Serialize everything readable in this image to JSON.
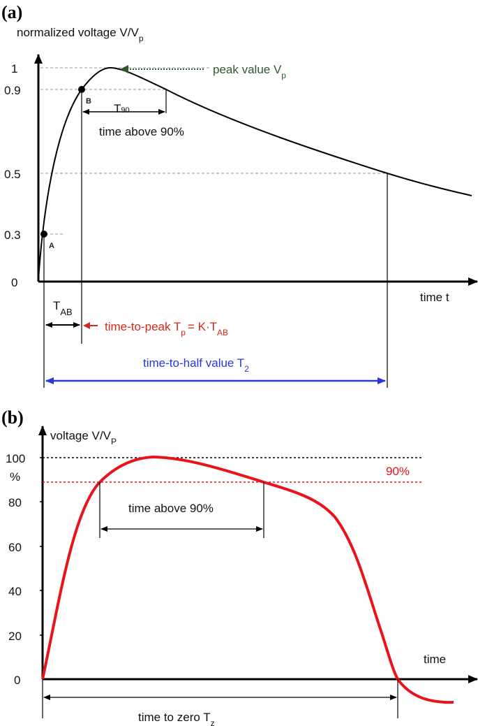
{
  "panel_a": {
    "tag": "(a)",
    "ylabel_main": "normalized voltage V/V",
    "ylabel_sub": "p",
    "y_ticks": [
      "1",
      "0.9",
      "0.5",
      "0.3",
      "0"
    ],
    "xlabel": "time t",
    "point_a": "A",
    "point_b": "B",
    "peak_label": "peak value V",
    "peak_sub": "p",
    "t90_main": "T",
    "t90_sub": "90",
    "t90_desc": "time above 90%",
    "tab_main": "T",
    "tab_sub": "AB",
    "ttp_main": "time-to-peak T",
    "ttp_sub": "p",
    "ttp_eq": "= K·T",
    "ttp_sub2": "AB",
    "t2_main": "time-to-half value T",
    "t2_sub": "2",
    "colors": {
      "peak": "#2e5a2e",
      "ttp": "#d8261c",
      "t2": "#2a36d8"
    }
  },
  "panel_b": {
    "tag": "(b)",
    "ylabel_main": "voltage V/V",
    "ylabel_sub": "P",
    "unit": "%",
    "y_ticks": [
      "100",
      "80",
      "60",
      "40",
      "20",
      "0"
    ],
    "xlabel": "time",
    "line90_label": "90%",
    "above90": "time above 90%",
    "tz_main": "time to zero T",
    "tz_sub": "z",
    "colors": {
      "curve": "#e8141c",
      "line90": "#e8141c",
      "line100": "#000000"
    }
  }
}
